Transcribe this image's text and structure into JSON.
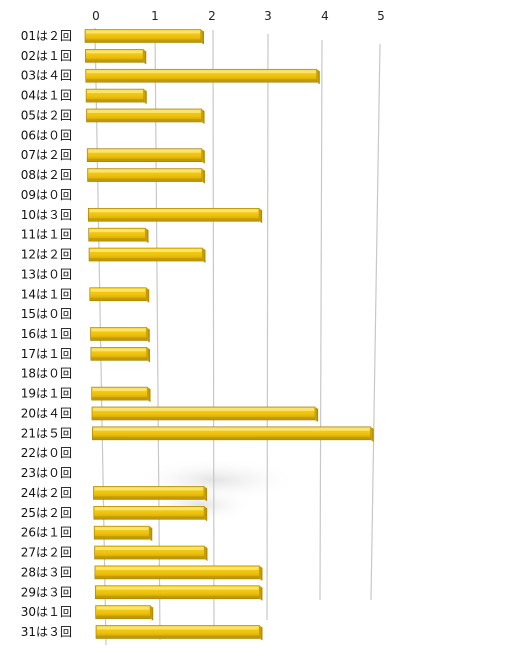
{
  "chart_data": {
    "type": "bar",
    "orientation": "horizontal",
    "style": "3d-perspective",
    "title": "",
    "xlabel": "",
    "ylabel": "",
    "xlim": [
      0,
      5
    ],
    "x_ticks": [
      "0",
      "1",
      "2",
      "3",
      "4",
      "5"
    ],
    "grid": true,
    "legend": "none",
    "bar_color": "#f1c40f",
    "bar_shade_color": "#b8940a",
    "bar_highlight_color": "#fbe77a",
    "grid_color": "#c8c8c8",
    "categories": [
      "01は２回",
      "02は１回",
      "03は４回",
      "04は１回",
      "05は２回",
      "06は０回",
      "07は２回",
      "08は２回",
      "09は０回",
      "10は３回",
      "11は１回",
      "12は２回",
      "13は０回",
      "14は１回",
      "15は０回",
      "16は１回",
      "17は１回",
      "18は０回",
      "19は１回",
      "20は４回",
      "21は５回",
      "22は０回",
      "23は０回",
      "24は２回",
      "25は２回",
      "26は１回",
      "27は２回",
      "28は３回",
      "29は３回",
      "30は１回",
      "31は３回"
    ],
    "values": [
      2,
      1,
      4,
      1,
      2,
      0,
      2,
      2,
      0,
      3,
      1,
      2,
      0,
      1,
      0,
      1,
      1,
      0,
      1,
      4,
      5,
      0,
      0,
      2,
      2,
      1,
      2,
      3,
      3,
      1,
      3
    ]
  }
}
